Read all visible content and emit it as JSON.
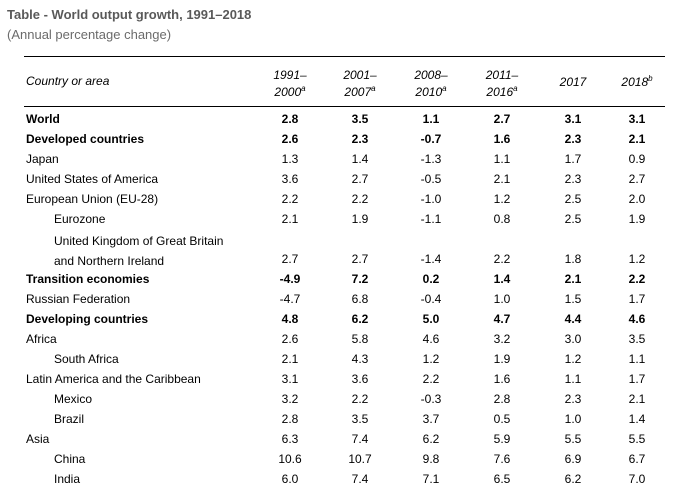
{
  "title": "Table  - World output growth, 1991–2018",
  "subtitle": "(Annual percentage change)",
  "table": {
    "row_label_header": "Country or area",
    "columns": [
      {
        "line1": "1991–",
        "line2": "2000",
        "sup": "a"
      },
      {
        "line1": "2001–",
        "line2": "2007",
        "sup": "a"
      },
      {
        "line1": "2008–",
        "line2": "2010",
        "sup": "a"
      },
      {
        "line1": "2011–",
        "line2": "2016",
        "sup": "a"
      },
      {
        "line1": "",
        "line2": "2017",
        "sup": ""
      },
      {
        "line1": "",
        "line2": "2018",
        "sup": "b"
      }
    ],
    "rows": [
      {
        "name": "World",
        "bold": true,
        "indent": false,
        "values": [
          "2.8",
          "3.5",
          "1.1",
          "2.7",
          "3.1",
          "3.1"
        ]
      },
      {
        "name": "Developed countries",
        "bold": true,
        "indent": false,
        "values": [
          "2.6",
          "2.3",
          "-0.7",
          "1.6",
          "2.3",
          "2.1"
        ]
      },
      {
        "name": "Japan",
        "bold": false,
        "indent": false,
        "values": [
          "1.3",
          "1.4",
          "-1.3",
          "1.1",
          "1.7",
          "0.9"
        ]
      },
      {
        "name": "United States of America",
        "bold": false,
        "indent": false,
        "values": [
          "3.6",
          "2.7",
          "-0.5",
          "2.1",
          "2.3",
          "2.7"
        ]
      },
      {
        "name": "European Union (EU-28)",
        "bold": false,
        "indent": false,
        "values": [
          "2.2",
          "2.2",
          "-1.0",
          "1.2",
          "2.5",
          "2.0"
        ]
      },
      {
        "name": "Eurozone",
        "bold": false,
        "indent": true,
        "values": [
          "2.1",
          "1.9",
          "-1.1",
          "0.8",
          "2.5",
          "1.9"
        ]
      },
      {
        "name": "United Kingdom of Great Britain",
        "name2": "and Northern Ireland",
        "bold": false,
        "indent": true,
        "values": [
          "2.7",
          "2.7",
          "-1.4",
          "2.2",
          "1.8",
          "1.2"
        ]
      },
      {
        "name": "Transition economies",
        "bold": true,
        "indent": false,
        "values": [
          "-4.9",
          "7.2",
          "0.2",
          "1.4",
          "2.1",
          "2.2"
        ]
      },
      {
        "name": "Russian Federation",
        "bold": false,
        "indent": false,
        "values": [
          "-4.7",
          "6.8",
          "-0.4",
          "1.0",
          "1.5",
          "1.7"
        ]
      },
      {
        "name": "Developing countries",
        "bold": true,
        "indent": false,
        "values": [
          "4.8",
          "6.2",
          "5.0",
          "4.7",
          "4.4",
          "4.6"
        ]
      },
      {
        "name": "Africa",
        "bold": false,
        "indent": false,
        "values": [
          "2.6",
          "5.8",
          "4.6",
          "3.2",
          "3.0",
          "3.5"
        ]
      },
      {
        "name": "South Africa",
        "bold": false,
        "indent": true,
        "values": [
          "2.1",
          "4.3",
          "1.2",
          "1.9",
          "1.2",
          "1.1"
        ]
      },
      {
        "name": "Latin America and the Caribbean",
        "bold": false,
        "indent": false,
        "values": [
          "3.1",
          "3.6",
          "2.2",
          "1.6",
          "1.1",
          "1.7"
        ]
      },
      {
        "name": "Mexico",
        "bold": false,
        "indent": true,
        "values": [
          "3.2",
          "2.2",
          "-0.3",
          "2.8",
          "2.3",
          "2.1"
        ]
      },
      {
        "name": "Brazil",
        "bold": false,
        "indent": true,
        "values": [
          "2.8",
          "3.5",
          "3.7",
          "0.5",
          "1.0",
          "1.4"
        ]
      },
      {
        "name": "Asia",
        "bold": false,
        "indent": false,
        "values": [
          "6.3",
          "7.4",
          "6.2",
          "5.9",
          "5.5",
          "5.5"
        ]
      },
      {
        "name": "China",
        "bold": false,
        "indent": true,
        "values": [
          "10.6",
          "10.7",
          "9.8",
          "7.6",
          "6.9",
          "6.7"
        ]
      },
      {
        "name": "India",
        "bold": false,
        "indent": true,
        "values": [
          "6.0",
          "7.4",
          "7.1",
          "6.5",
          "6.2",
          "7.0"
        ]
      }
    ]
  }
}
